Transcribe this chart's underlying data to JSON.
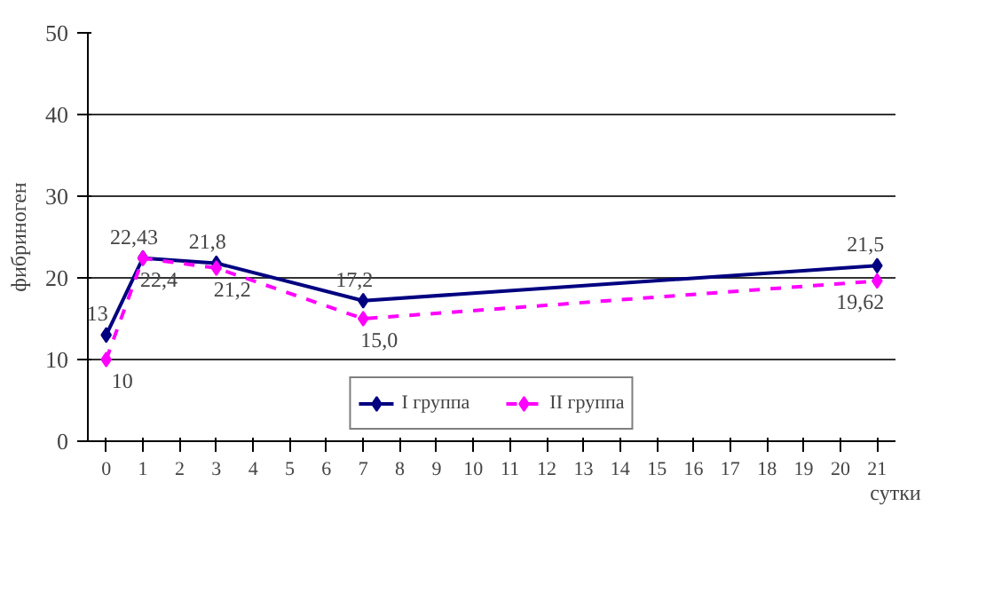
{
  "chart_data": {
    "type": "line",
    "xlabel": "сутки",
    "ylabel": "фибриноген",
    "xlim": [
      -0.5,
      21.5
    ],
    "xticks": [
      0,
      1,
      2,
      3,
      4,
      5,
      6,
      7,
      8,
      9,
      10,
      11,
      12,
      13,
      14,
      15,
      16,
      17,
      18,
      19,
      20,
      21
    ],
    "ylim": [
      0,
      50
    ],
    "yticks": [
      0,
      10,
      20,
      30,
      40,
      50
    ],
    "grid": "y",
    "legend": "bottom",
    "marker": "diamond",
    "series": [
      {
        "name": "I группа",
        "color": "#000080",
        "line_style": "solid",
        "x": [
          0,
          1,
          3,
          7,
          21
        ],
        "values": [
          13,
          22.43,
          21.8,
          17.2,
          21.5
        ],
        "value_labels": [
          "13",
          "22,43",
          "21,8",
          "17,2",
          "21,5"
        ]
      },
      {
        "name": "II группа",
        "color": "#ff00ff",
        "line_style": "dashed",
        "x": [
          0,
          1,
          3,
          7,
          21
        ],
        "values": [
          10,
          22.4,
          21.2,
          15.0,
          19.62
        ],
        "value_labels": [
          "10",
          "22,4",
          "21,2",
          "15,0",
          "19,62"
        ]
      }
    ]
  }
}
